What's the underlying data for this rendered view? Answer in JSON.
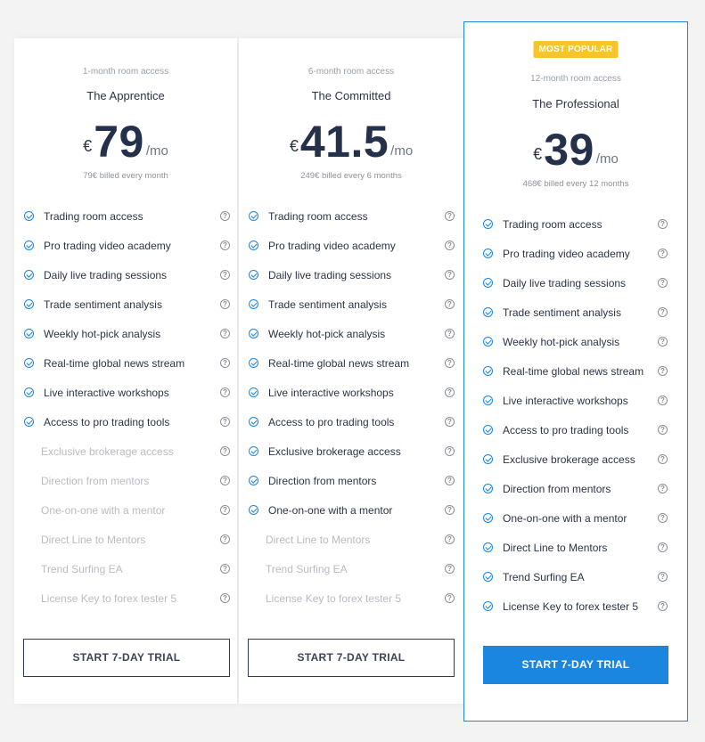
{
  "plans": [
    {
      "badge": "",
      "access": "1-month room access",
      "name": "The Apprentice",
      "currency": "€",
      "amount": "79",
      "period": "/mo",
      "billed": "79€ billed every month",
      "cta": "START 7-DAY TRIAL",
      "cta_style": "outline",
      "features": [
        {
          "label": "Trading room access",
          "included": true
        },
        {
          "label": "Pro trading video academy",
          "included": true
        },
        {
          "label": "Daily live trading sessions",
          "included": true
        },
        {
          "label": "Trade sentiment analysis",
          "included": true
        },
        {
          "label": "Weekly hot-pick analysis",
          "included": true
        },
        {
          "label": "Real-time global news stream",
          "included": true
        },
        {
          "label": "Live interactive workshops",
          "included": true
        },
        {
          "label": "Access to pro trading tools",
          "included": true
        },
        {
          "label": "Exclusive brokerage access",
          "included": false
        },
        {
          "label": "Direction from mentors",
          "included": false
        },
        {
          "label": "One-on-one with a mentor",
          "included": false
        },
        {
          "label": "Direct Line to Mentors",
          "included": false
        },
        {
          "label": "Trend Surfing EA",
          "included": false
        },
        {
          "label": "License Key to forex tester 5",
          "included": false
        }
      ]
    },
    {
      "badge": "",
      "access": "6-month room access",
      "name": "The Committed",
      "currency": "€",
      "amount": "41.5",
      "period": "/mo",
      "billed": "249€ billed every 6 months",
      "cta": "START 7-DAY TRIAL",
      "cta_style": "outline",
      "features": [
        {
          "label": "Trading room access",
          "included": true
        },
        {
          "label": "Pro trading video academy",
          "included": true
        },
        {
          "label": "Daily live trading sessions",
          "included": true
        },
        {
          "label": "Trade sentiment analysis",
          "included": true
        },
        {
          "label": "Weekly hot-pick analysis",
          "included": true
        },
        {
          "label": "Real-time global news stream",
          "included": true
        },
        {
          "label": "Live interactive workshops",
          "included": true
        },
        {
          "label": "Access to pro trading tools",
          "included": true
        },
        {
          "label": "Exclusive brokerage access",
          "included": true
        },
        {
          "label": "Direction from mentors",
          "included": true
        },
        {
          "label": "One-on-one with a mentor",
          "included": true
        },
        {
          "label": "Direct Line to Mentors",
          "included": false
        },
        {
          "label": "Trend Surfing EA",
          "included": false
        },
        {
          "label": "License Key to forex tester 5",
          "included": false
        }
      ]
    },
    {
      "badge": "MOST POPULAR",
      "access": "12-month room access",
      "name": "The Professional",
      "currency": "€",
      "amount": "39",
      "period": "/mo",
      "billed": "468€ billed every 12 months",
      "cta": "START 7-DAY TRIAL",
      "cta_style": "solid",
      "features": [
        {
          "label": "Trading room access",
          "included": true
        },
        {
          "label": "Pro trading video academy",
          "included": true
        },
        {
          "label": "Daily live trading sessions",
          "included": true
        },
        {
          "label": "Trade sentiment analysis",
          "included": true
        },
        {
          "label": "Weekly hot-pick analysis",
          "included": true
        },
        {
          "label": "Real-time global news stream",
          "included": true
        },
        {
          "label": "Live interactive workshops",
          "included": true
        },
        {
          "label": "Access to pro trading tools",
          "included": true
        },
        {
          "label": "Exclusive brokerage access",
          "included": true
        },
        {
          "label": "Direction from mentors",
          "included": true
        },
        {
          "label": "One-on-one with a mentor",
          "included": true
        },
        {
          "label": "Direct Line to Mentors",
          "included": true
        },
        {
          "label": "Trend Surfing EA",
          "included": true
        },
        {
          "label": "License Key to forex tester 5",
          "included": true
        }
      ]
    }
  ],
  "help_glyph": "?",
  "colors": {
    "accent": "#1b86e0",
    "badge": "#f7c52a",
    "text": "#2b3445",
    "muted": "#b8bcc2"
  },
  "icons": {
    "included": "check-circle-icon",
    "help": "question-circle-icon"
  }
}
